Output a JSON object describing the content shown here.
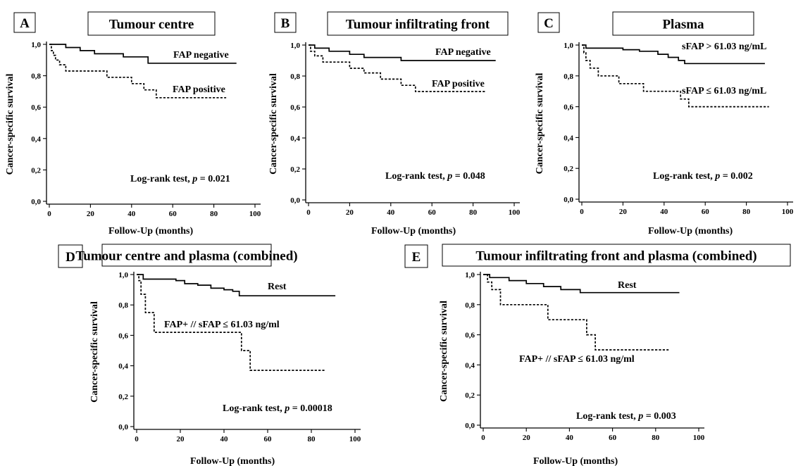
{
  "chart_data": [
    {
      "type": "line",
      "panel": "A",
      "title": "Tumour centre",
      "xlabel": "Follow-Up (months)",
      "ylabel": "Cancer-specific survival",
      "xticks": [
        "0",
        "20",
        "40",
        "60",
        "80",
        "100"
      ],
      "yticks": [
        "0,0",
        "0,2",
        "0,4",
        "0,6",
        "0,8",
        "1,0"
      ],
      "xlim": [
        0,
        100
      ],
      "ylim": [
        0,
        1
      ],
      "series": [
        {
          "name": "FAP negative",
          "style": "solid",
          "x": [
            0,
            8,
            15,
            22,
            36,
            48,
            91
          ],
          "y": [
            1.0,
            0.98,
            0.96,
            0.94,
            0.92,
            0.88,
            0.88
          ]
        },
        {
          "name": "FAP positive",
          "style": "dashed",
          "x": [
            0,
            1,
            2,
            3,
            5,
            8,
            20,
            28,
            40,
            46,
            52,
            86
          ],
          "y": [
            1.0,
            0.96,
            0.93,
            0.9,
            0.87,
            0.83,
            0.83,
            0.79,
            0.75,
            0.71,
            0.66,
            0.66
          ]
        }
      ],
      "annotation": {
        "prefix": "Log-rank test,",
        "p_label": "p",
        "value": "= 0.021"
      }
    },
    {
      "type": "line",
      "panel": "B",
      "title": "Tumour infiltrating front",
      "xlabel": "Follow-Up (months)",
      "ylabel": "Cancer-specific survival",
      "xticks": [
        "0",
        "20",
        "40",
        "60",
        "80",
        "100"
      ],
      "yticks": [
        "0,0",
        "0,2",
        "0,4",
        "0,6",
        "0,8",
        "1,0"
      ],
      "xlim": [
        0,
        100
      ],
      "ylim": [
        0,
        1
      ],
      "series": [
        {
          "name": "FAP negative",
          "style": "solid",
          "x": [
            0,
            3,
            10,
            20,
            27,
            45,
            91
          ],
          "y": [
            1.0,
            0.98,
            0.96,
            0.94,
            0.92,
            0.9,
            0.9
          ]
        },
        {
          "name": "FAP positive",
          "style": "dashed",
          "x": [
            0,
            1,
            3,
            7,
            20,
            27,
            35,
            45,
            52,
            86
          ],
          "y": [
            1.0,
            0.96,
            0.93,
            0.89,
            0.85,
            0.82,
            0.78,
            0.74,
            0.7,
            0.7
          ]
        }
      ],
      "annotation": {
        "prefix": "Log-rank test,",
        "p_label": "p",
        "value": "= 0.048"
      }
    },
    {
      "type": "line",
      "panel": "C",
      "title": "Plasma",
      "xlabel": "Follow-Up (months)",
      "ylabel": "Cancer-specific survival",
      "xticks": [
        "0",
        "20",
        "40",
        "60",
        "80",
        "100"
      ],
      "yticks": [
        "0,0",
        "0,2",
        "0,4",
        "0,6",
        "0,8",
        "1,0"
      ],
      "xlim": [
        0,
        100
      ],
      "ylim": [
        0,
        1
      ],
      "series": [
        {
          "name": "sFAP > 61.03 ng/mL",
          "style": "solid",
          "x": [
            0,
            2,
            20,
            28,
            37,
            42,
            47,
            50,
            89
          ],
          "y": [
            1.0,
            0.98,
            0.97,
            0.96,
            0.94,
            0.92,
            0.9,
            0.88,
            0.88
          ]
        },
        {
          "name": "sFAP ≤ 61.03 ng/mL",
          "style": "dashed",
          "x": [
            0,
            1,
            2,
            4,
            8,
            18,
            30,
            48,
            52,
            91
          ],
          "y": [
            1.0,
            0.95,
            0.9,
            0.85,
            0.8,
            0.75,
            0.7,
            0.65,
            0.6,
            0.6
          ]
        }
      ],
      "annotation": {
        "prefix": "Log-rank test,",
        "p_label": "p",
        "value": "= 0.002"
      }
    },
    {
      "type": "line",
      "panel": "D",
      "title": "Tumour centre and plasma (combined)",
      "xlabel": "Follow-Up (months)",
      "ylabel": "Cancer-specific survival",
      "xticks": [
        "0",
        "20",
        "40",
        "60",
        "80",
        "100"
      ],
      "yticks": [
        "0,0",
        "0,2",
        "0,4",
        "0,6",
        "0,8",
        "1,0"
      ],
      "xlim": [
        0,
        100
      ],
      "ylim": [
        0,
        1
      ],
      "series": [
        {
          "name": "Rest",
          "style": "solid",
          "x": [
            0,
            3,
            18,
            22,
            28,
            34,
            40,
            44,
            47,
            91
          ],
          "y": [
            1.0,
            0.97,
            0.96,
            0.94,
            0.93,
            0.91,
            0.9,
            0.89,
            0.86,
            0.86
          ]
        },
        {
          "name": "FAP+ // sFAP ≤ 61.03 ng/ml",
          "style": "dashed",
          "x": [
            0,
            1,
            2,
            4,
            8,
            48,
            52,
            86
          ],
          "y": [
            1.0,
            0.96,
            0.87,
            0.75,
            0.62,
            0.5,
            0.37,
            0.37
          ]
        }
      ],
      "annotation": {
        "prefix": "Log-rank test,",
        "p_label": "p",
        "value": "= 0.00018"
      }
    },
    {
      "type": "line",
      "panel": "E",
      "title": "Tumour infiltrating front and plasma (combined)",
      "xlabel": "Follow-Up (months)",
      "ylabel": "Cancer-specific survival",
      "xticks": [
        "0",
        "20",
        "40",
        "60",
        "80",
        "100"
      ],
      "yticks": [
        "0,0",
        "0,2",
        "0,4",
        "0,6",
        "0,8",
        "1,0"
      ],
      "xlim": [
        0,
        100
      ],
      "ylim": [
        0,
        1
      ],
      "series": [
        {
          "name": "Rest",
          "style": "solid",
          "x": [
            0,
            3,
            12,
            20,
            28,
            36,
            45,
            91
          ],
          "y": [
            1.0,
            0.98,
            0.96,
            0.94,
            0.92,
            0.9,
            0.88,
            0.88
          ]
        },
        {
          "name": "FAP+ // sFAP ≤ 61.03 ng/ml",
          "style": "dashed",
          "x": [
            0,
            2,
            4,
            8,
            30,
            48,
            52,
            86
          ],
          "y": [
            1.0,
            0.95,
            0.9,
            0.8,
            0.7,
            0.6,
            0.5,
            0.5
          ]
        }
      ],
      "annotation": {
        "prefix": "Log-rank test,",
        "p_label": "p",
        "value": "= 0.003"
      }
    }
  ]
}
